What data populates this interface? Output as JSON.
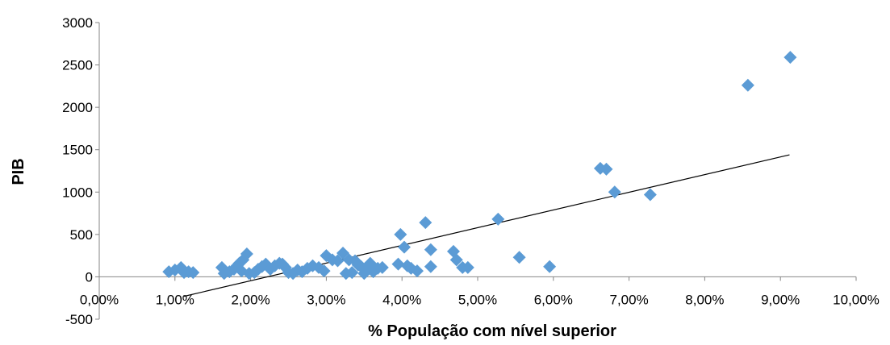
{
  "chart_data": {
    "type": "scatter",
    "title": "",
    "xlabel": "% População com nível superior",
    "ylabel": "PIB",
    "xlim": [
      0,
      0.1
    ],
    "ylim": [
      -500,
      3000
    ],
    "x_ticks": [
      0,
      0.01,
      0.02,
      0.03,
      0.04,
      0.05,
      0.06,
      0.07,
      0.08,
      0.09,
      0.1
    ],
    "x_tick_labels": [
      "0,00%",
      "1,00%",
      "2,00%",
      "3,00%",
      "4,00%",
      "5,00%",
      "6,00%",
      "7,00%",
      "8,00%",
      "9,00%",
      "10,00%"
    ],
    "y_ticks": [
      -500,
      0,
      500,
      1000,
      1500,
      2000,
      2500,
      3000
    ],
    "y_tick_labels": [
      "-500",
      "0",
      "500",
      "1000",
      "1500",
      "2000",
      "2500",
      "3000"
    ],
    "grid": false,
    "legend": "none",
    "marker": "diamond",
    "marker_color": "#5B9BD5",
    "trendline_color": "#000000",
    "trendline": {
      "x": [
        0.0112,
        0.0912
      ],
      "y": [
        -230,
        1440
      ]
    },
    "series": [
      {
        "values": [
          [
            0.0092,
            60
          ],
          [
            0.01,
            80
          ],
          [
            0.0108,
            110
          ],
          [
            0.0112,
            50
          ],
          [
            0.0118,
            60
          ],
          [
            0.0124,
            50
          ],
          [
            0.0162,
            110
          ],
          [
            0.0165,
            40
          ],
          [
            0.0172,
            60
          ],
          [
            0.0178,
            90
          ],
          [
            0.0182,
            130
          ],
          [
            0.0185,
            160
          ],
          [
            0.0188,
            70
          ],
          [
            0.019,
            200
          ],
          [
            0.0195,
            270
          ],
          [
            0.0198,
            40
          ],
          [
            0.0205,
            50
          ],
          [
            0.021,
            90
          ],
          [
            0.0215,
            120
          ],
          [
            0.022,
            150
          ],
          [
            0.0226,
            90
          ],
          [
            0.0232,
            130
          ],
          [
            0.0238,
            160
          ],
          [
            0.0242,
            150
          ],
          [
            0.0246,
            110
          ],
          [
            0.025,
            50
          ],
          [
            0.0256,
            40
          ],
          [
            0.0262,
            80
          ],
          [
            0.0268,
            60
          ],
          [
            0.0275,
            100
          ],
          [
            0.0282,
            130
          ],
          [
            0.029,
            110
          ],
          [
            0.0297,
            70
          ],
          [
            0.03,
            250
          ],
          [
            0.0308,
            200
          ],
          [
            0.0315,
            190
          ],
          [
            0.0322,
            280
          ],
          [
            0.0326,
            40
          ],
          [
            0.033,
            200
          ],
          [
            0.0334,
            50
          ],
          [
            0.0338,
            190
          ],
          [
            0.0342,
            140
          ],
          [
            0.0346,
            120
          ],
          [
            0.035,
            40
          ],
          [
            0.0354,
            100
          ],
          [
            0.0358,
            160
          ],
          [
            0.0362,
            60
          ],
          [
            0.0368,
            100
          ],
          [
            0.0374,
            110
          ],
          [
            0.0395,
            150
          ],
          [
            0.0398,
            500
          ],
          [
            0.0403,
            350
          ],
          [
            0.0407,
            130
          ],
          [
            0.0412,
            100
          ],
          [
            0.042,
            70
          ],
          [
            0.0431,
            640
          ],
          [
            0.0438,
            320
          ],
          [
            0.0438,
            120
          ],
          [
            0.0468,
            300
          ],
          [
            0.0472,
            200
          ],
          [
            0.048,
            110
          ],
          [
            0.0487,
            110
          ],
          [
            0.0527,
            680
          ],
          [
            0.0555,
            230
          ],
          [
            0.0595,
            120
          ],
          [
            0.0662,
            1280
          ],
          [
            0.067,
            1270
          ],
          [
            0.0681,
            1000
          ],
          [
            0.0728,
            970
          ],
          [
            0.0857,
            2260
          ],
          [
            0.0913,
            2590
          ]
        ]
      }
    ]
  }
}
